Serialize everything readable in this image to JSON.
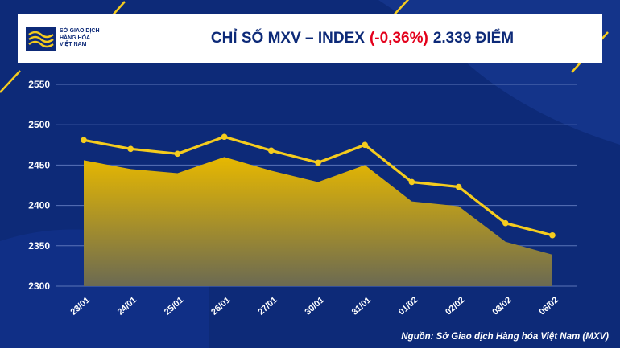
{
  "header": {
    "logo_lines": [
      "SỞ GIAO DỊCH",
      "HÀNG HÓA",
      "VIỆT NAM"
    ],
    "title_prefix": "CHỈ SỐ MXV – INDEX",
    "title_change": "(-0,36%)",
    "title_suffix": "2.339 ĐIỂM"
  },
  "source_note": "Nguồn: Sở Giao dịch Hàng hóa Việt Nam (MXV)",
  "colors": {
    "background": "#0d2a78",
    "line": "#f5cc1e",
    "area_top": "#e7b800",
    "area_bottom": "#6b6a52",
    "negative": "#e3001b"
  },
  "chart_data": {
    "type": "line",
    "categories": [
      "23/01",
      "24/01",
      "25/01",
      "26/01",
      "27/01",
      "30/01",
      "31/01",
      "01/02",
      "02/02",
      "03/02",
      "06/02"
    ],
    "series": [
      {
        "values": [
          2481,
          2470,
          2464,
          2485,
          2468,
          2453,
          2475,
          2429,
          2423,
          2378,
          2363
        ]
      },
      {
        "values": [
          2456,
          2445,
          2440,
          2460,
          2443,
          2429,
          2450,
          2405,
          2399,
          2355,
          2339
        ]
      }
    ],
    "series_styles": [
      "line",
      "area"
    ],
    "yticks": [
      2300,
      2350,
      2400,
      2450,
      2500,
      2550
    ],
    "ylim": [
      2300,
      2550
    ],
    "grid": true
  }
}
